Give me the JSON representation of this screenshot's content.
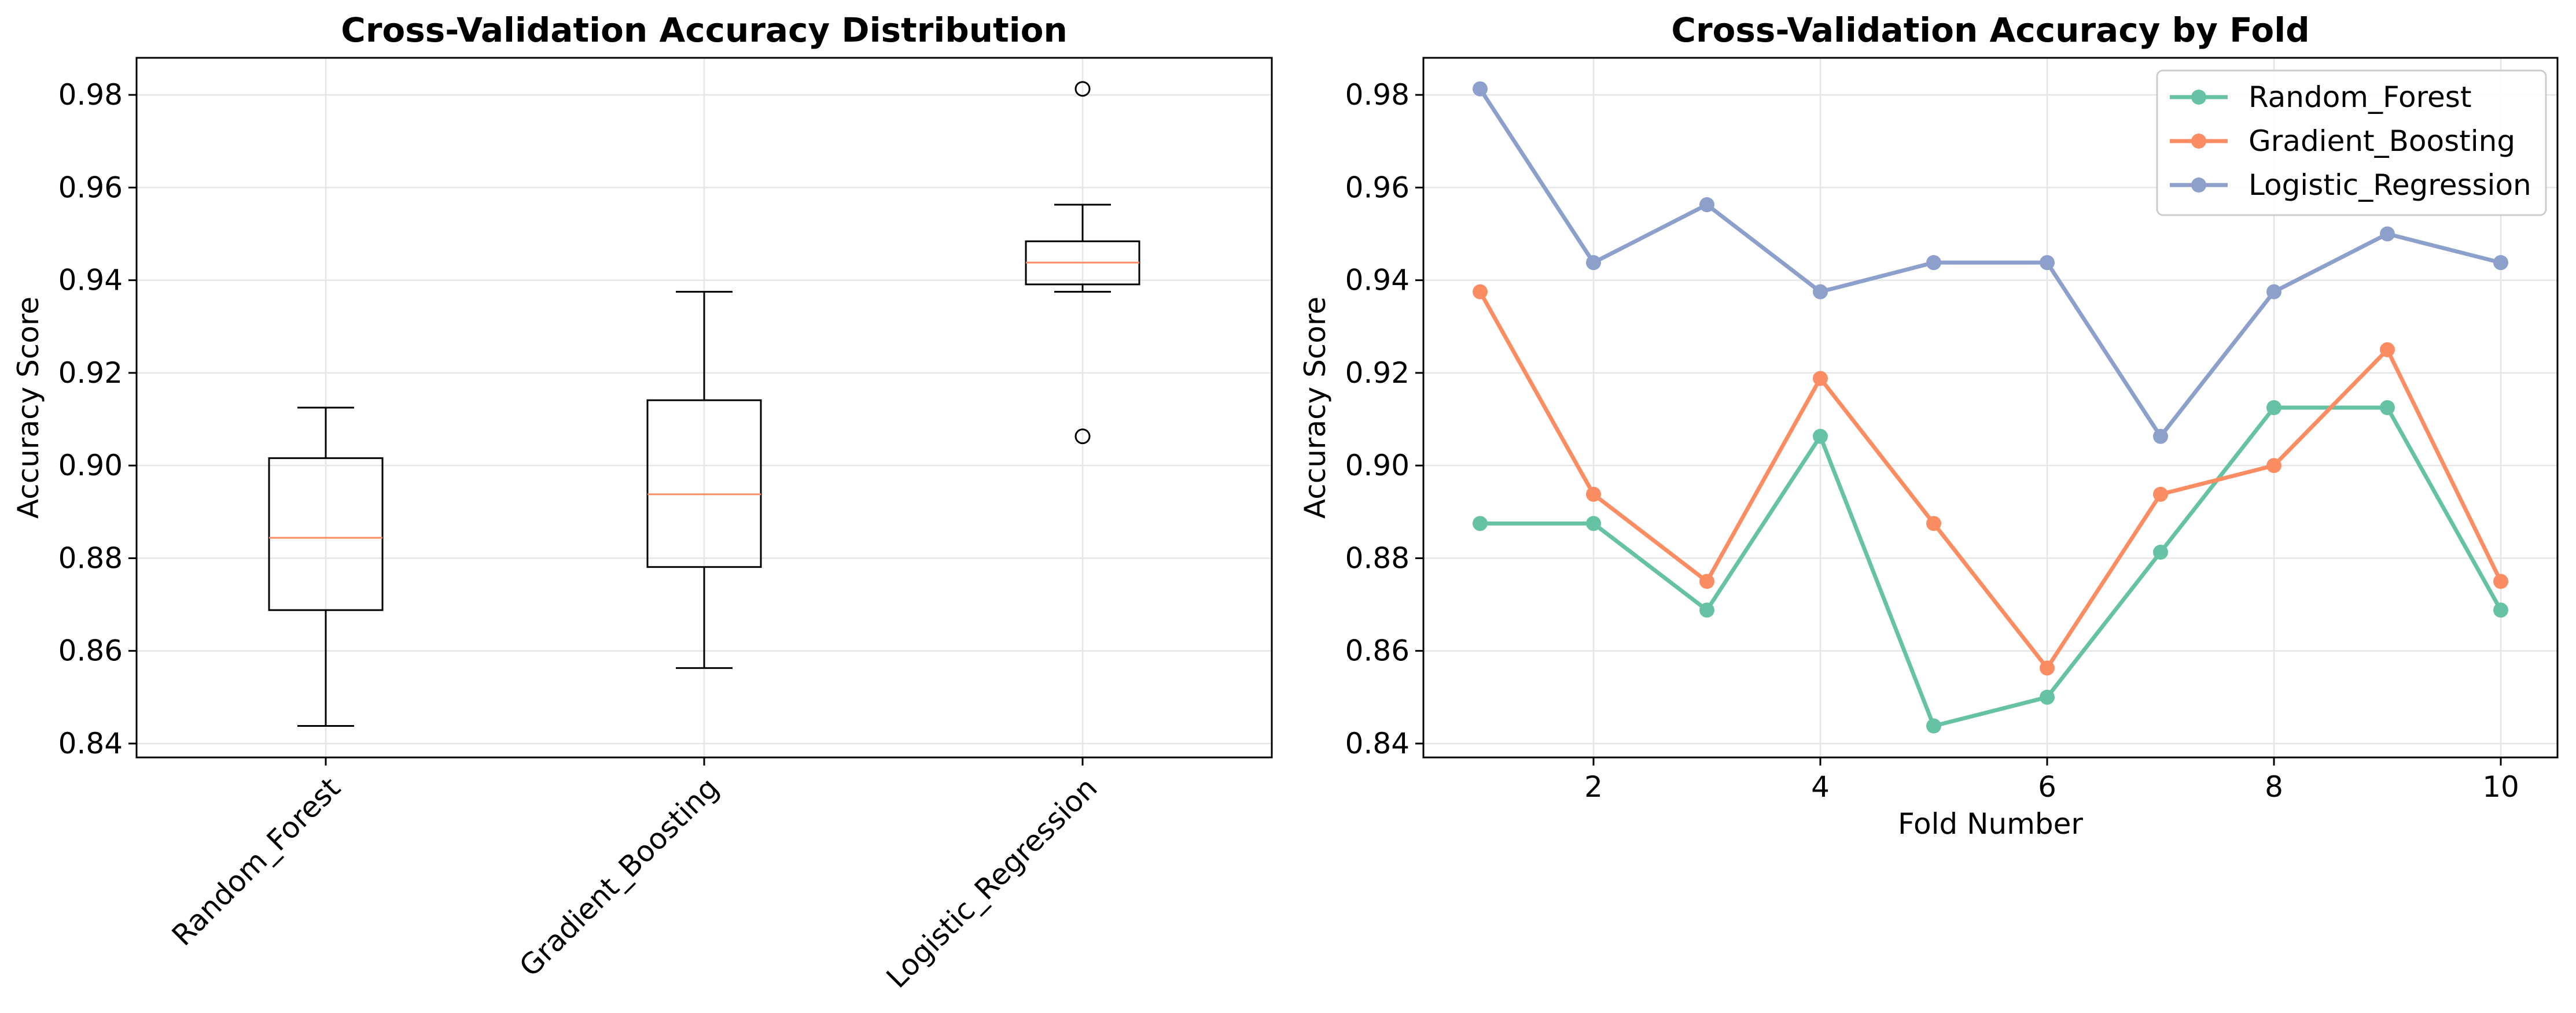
{
  "chart_data": [
    {
      "type": "box",
      "title": "Cross-Validation Accuracy Distribution",
      "xlabel": "",
      "ylabel": "Accuracy Score",
      "ylim": [
        0.837,
        0.988
      ],
      "yticks": [
        0.84,
        0.86,
        0.88,
        0.9,
        0.92,
        0.94,
        0.96,
        0.98
      ],
      "ytick_labels": [
        "0.84",
        "0.86",
        "0.88",
        "0.90",
        "0.92",
        "0.94",
        "0.96",
        "0.98"
      ],
      "grid": true,
      "median_color": "#fc8d62",
      "categories": [
        "Random_Forest",
        "Gradient_Boosting",
        "Logistic_Regression"
      ],
      "boxes": [
        {
          "whisker_low": 0.8438,
          "q1": 0.8688,
          "median": 0.8844,
          "q3": 0.9016,
          "whisker_high": 0.9125,
          "outliers": []
        },
        {
          "whisker_low": 0.8563,
          "q1": 0.8781,
          "median": 0.8938,
          "q3": 0.9141,
          "whisker_high": 0.9375,
          "outliers": []
        },
        {
          "whisker_low": 0.9375,
          "q1": 0.9391,
          "median": 0.9438,
          "q3": 0.9484,
          "whisker_high": 0.9563,
          "outliers": [
            0.9813,
            0.9063
          ]
        }
      ]
    },
    {
      "type": "line",
      "title": "Cross-Validation Accuracy by Fold",
      "xlabel": "Fold Number",
      "ylabel": "Accuracy Score",
      "xlim": [
        0.5,
        10.5
      ],
      "ylim": [
        0.837,
        0.988
      ],
      "xticks": [
        2,
        4,
        6,
        8,
        10
      ],
      "xtick_labels": [
        "2",
        "4",
        "6",
        "8",
        "10"
      ],
      "yticks": [
        0.84,
        0.86,
        0.88,
        0.9,
        0.92,
        0.94,
        0.96,
        0.98
      ],
      "ytick_labels": [
        "0.84",
        "0.86",
        "0.88",
        "0.90",
        "0.92",
        "0.94",
        "0.96",
        "0.98"
      ],
      "grid": true,
      "legend_position": "top-right",
      "x": [
        1,
        2,
        3,
        4,
        5,
        6,
        7,
        8,
        9,
        10
      ],
      "series": [
        {
          "name": "Random_Forest",
          "color": "#66c2a5",
          "values": [
            0.8875,
            0.8875,
            0.8688,
            0.9063,
            0.8438,
            0.85,
            0.8813,
            0.9125,
            0.9125,
            0.8688
          ]
        },
        {
          "name": "Gradient_Boosting",
          "color": "#fc8d62",
          "values": [
            0.9375,
            0.8938,
            0.875,
            0.9188,
            0.8875,
            0.8563,
            0.8938,
            0.9,
            0.925,
            0.875
          ]
        },
        {
          "name": "Logistic_Regression",
          "color": "#8da0cb",
          "values": [
            0.9813,
            0.9438,
            0.9563,
            0.9375,
            0.9438,
            0.9438,
            0.9063,
            0.9375,
            0.95,
            0.9438
          ]
        }
      ]
    }
  ]
}
